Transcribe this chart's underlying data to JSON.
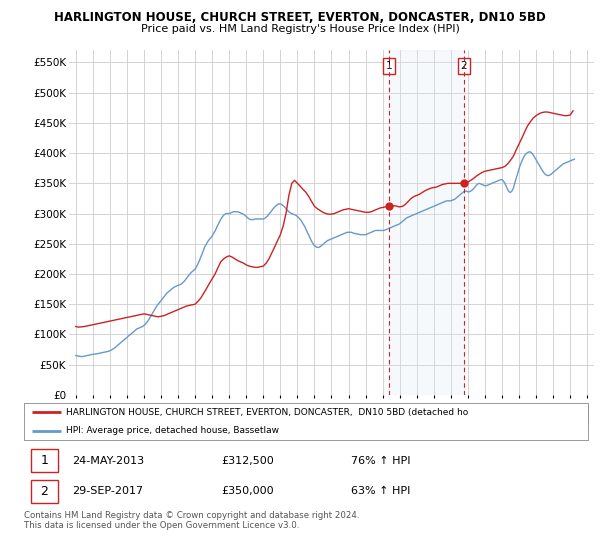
{
  "title": "HARLINGTON HOUSE, CHURCH STREET, EVERTON, DONCASTER, DN10 5BD",
  "subtitle": "Price paid vs. HM Land Registry's House Price Index (HPI)",
  "ylim": [
    0,
    570000
  ],
  "yticks": [
    0,
    50000,
    100000,
    150000,
    200000,
    250000,
    300000,
    350000,
    400000,
    450000,
    500000,
    550000
  ],
  "ytick_labels": [
    "£0",
    "£50K",
    "£100K",
    "£150K",
    "£200K",
    "£250K",
    "£300K",
    "£350K",
    "£400K",
    "£450K",
    "£500K",
    "£550K"
  ],
  "background_color": "#ffffff",
  "plot_bg_color": "#ffffff",
  "grid_color": "#cccccc",
  "hpi_line_color": "#6699cc",
  "price_line_color": "#cc2222",
  "vline_color": "#cc2222",
  "span_color": "#dce8f5",
  "legend_label_red": "HARLINGTON HOUSE, CHURCH STREET, EVERTON, DONCASTER,  DN10 5BD (detached ho",
  "legend_label_blue": "HPI: Average price, detached house, Bassetlaw",
  "annotation1_date": "24-MAY-2013",
  "annotation1_price": "£312,500",
  "annotation1_hpi": "76% ↑ HPI",
  "annotation2_date": "29-SEP-2017",
  "annotation2_price": "£350,000",
  "annotation2_hpi": "63% ↑ HPI",
  "copyright": "Contains HM Land Registry data © Crown copyright and database right 2024.\nThis data is licensed under the Open Government Licence v3.0.",
  "sale1_x": 2013.38,
  "sale1_y": 312500,
  "sale2_x": 2017.75,
  "sale2_y": 350000,
  "hpi_x": [
    1995.0,
    1995.08,
    1995.17,
    1995.25,
    1995.33,
    1995.42,
    1995.5,
    1995.58,
    1995.67,
    1995.75,
    1995.83,
    1995.92,
    1996.0,
    1996.08,
    1996.17,
    1996.25,
    1996.33,
    1996.42,
    1996.5,
    1996.58,
    1996.67,
    1996.75,
    1996.83,
    1996.92,
    1997.0,
    1997.08,
    1997.17,
    1997.25,
    1997.33,
    1997.42,
    1997.5,
    1997.58,
    1997.67,
    1997.75,
    1997.83,
    1997.92,
    1998.0,
    1998.08,
    1998.17,
    1998.25,
    1998.33,
    1998.42,
    1998.5,
    1998.58,
    1998.67,
    1998.75,
    1998.83,
    1998.92,
    1999.0,
    1999.08,
    1999.17,
    1999.25,
    1999.33,
    1999.42,
    1999.5,
    1999.58,
    1999.67,
    1999.75,
    1999.83,
    1999.92,
    2000.0,
    2000.08,
    2000.17,
    2000.25,
    2000.33,
    2000.42,
    2000.5,
    2000.58,
    2000.67,
    2000.75,
    2000.83,
    2000.92,
    2001.0,
    2001.08,
    2001.17,
    2001.25,
    2001.33,
    2001.42,
    2001.5,
    2001.58,
    2001.67,
    2001.75,
    2001.83,
    2001.92,
    2002.0,
    2002.08,
    2002.17,
    2002.25,
    2002.33,
    2002.42,
    2002.5,
    2002.58,
    2002.67,
    2002.75,
    2002.83,
    2002.92,
    2003.0,
    2003.08,
    2003.17,
    2003.25,
    2003.33,
    2003.42,
    2003.5,
    2003.58,
    2003.67,
    2003.75,
    2003.83,
    2003.92,
    2004.0,
    2004.08,
    2004.17,
    2004.25,
    2004.33,
    2004.42,
    2004.5,
    2004.58,
    2004.67,
    2004.75,
    2004.83,
    2004.92,
    2005.0,
    2005.08,
    2005.17,
    2005.25,
    2005.33,
    2005.42,
    2005.5,
    2005.58,
    2005.67,
    2005.75,
    2005.83,
    2005.92,
    2006.0,
    2006.08,
    2006.17,
    2006.25,
    2006.33,
    2006.42,
    2006.5,
    2006.58,
    2006.67,
    2006.75,
    2006.83,
    2006.92,
    2007.0,
    2007.08,
    2007.17,
    2007.25,
    2007.33,
    2007.42,
    2007.5,
    2007.58,
    2007.67,
    2007.75,
    2007.83,
    2007.92,
    2008.0,
    2008.08,
    2008.17,
    2008.25,
    2008.33,
    2008.42,
    2008.5,
    2008.58,
    2008.67,
    2008.75,
    2008.83,
    2008.92,
    2009.0,
    2009.08,
    2009.17,
    2009.25,
    2009.33,
    2009.42,
    2009.5,
    2009.58,
    2009.67,
    2009.75,
    2009.83,
    2009.92,
    2010.0,
    2010.08,
    2010.17,
    2010.25,
    2010.33,
    2010.42,
    2010.5,
    2010.58,
    2010.67,
    2010.75,
    2010.83,
    2010.92,
    2011.0,
    2011.08,
    2011.17,
    2011.25,
    2011.33,
    2011.42,
    2011.5,
    2011.58,
    2011.67,
    2011.75,
    2011.83,
    2011.92,
    2012.0,
    2012.08,
    2012.17,
    2012.25,
    2012.33,
    2012.42,
    2012.5,
    2012.58,
    2012.67,
    2012.75,
    2012.83,
    2012.92,
    2013.0,
    2013.08,
    2013.17,
    2013.25,
    2013.33,
    2013.42,
    2013.5,
    2013.58,
    2013.67,
    2013.75,
    2013.83,
    2013.92,
    2014.0,
    2014.08,
    2014.17,
    2014.25,
    2014.33,
    2014.42,
    2014.5,
    2014.58,
    2014.67,
    2014.75,
    2014.83,
    2014.92,
    2015.0,
    2015.08,
    2015.17,
    2015.25,
    2015.33,
    2015.42,
    2015.5,
    2015.58,
    2015.67,
    2015.75,
    2015.83,
    2015.92,
    2016.0,
    2016.08,
    2016.17,
    2016.25,
    2016.33,
    2016.42,
    2016.5,
    2016.58,
    2016.67,
    2016.75,
    2016.83,
    2016.92,
    2017.0,
    2017.08,
    2017.17,
    2017.25,
    2017.33,
    2017.42,
    2017.5,
    2017.58,
    2017.67,
    2017.75,
    2017.83,
    2017.92,
    2018.0,
    2018.08,
    2018.17,
    2018.25,
    2018.33,
    2018.42,
    2018.5,
    2018.58,
    2018.67,
    2018.75,
    2018.83,
    2018.92,
    2019.0,
    2019.08,
    2019.17,
    2019.25,
    2019.33,
    2019.42,
    2019.5,
    2019.58,
    2019.67,
    2019.75,
    2019.83,
    2019.92,
    2020.0,
    2020.08,
    2020.17,
    2020.25,
    2020.33,
    2020.42,
    2020.5,
    2020.58,
    2020.67,
    2020.75,
    2020.83,
    2020.92,
    2021.0,
    2021.08,
    2021.17,
    2021.25,
    2021.33,
    2021.42,
    2021.5,
    2021.58,
    2021.67,
    2021.75,
    2021.83,
    2021.92,
    2022.0,
    2022.08,
    2022.17,
    2022.25,
    2022.33,
    2022.42,
    2022.5,
    2022.58,
    2022.67,
    2022.75,
    2022.83,
    2022.92,
    2023.0,
    2023.08,
    2023.17,
    2023.25,
    2023.33,
    2023.42,
    2023.5,
    2023.58,
    2023.67,
    2023.75,
    2023.83,
    2023.92,
    2024.0,
    2024.08,
    2024.17,
    2024.25
  ],
  "hpi_y": [
    65000,
    64500,
    64000,
    63500,
    63200,
    63500,
    64000,
    64500,
    65000,
    65500,
    66000,
    66500,
    67000,
    67200,
    67500,
    68000,
    68500,
    69000,
    69500,
    70000,
    70500,
    71000,
    71500,
    72000,
    73000,
    74000,
    75500,
    77000,
    79000,
    81000,
    83000,
    85000,
    87000,
    89000,
    91000,
    93000,
    95000,
    97000,
    99000,
    101000,
    103000,
    105000,
    107000,
    109000,
    110000,
    111000,
    112000,
    113000,
    115000,
    117000,
    120000,
    123000,
    127000,
    131000,
    135000,
    139000,
    143000,
    147000,
    150000,
    153000,
    156000,
    159000,
    162000,
    165000,
    168000,
    170000,
    172000,
    174000,
    176000,
    178000,
    179000,
    180000,
    181000,
    182000,
    183000,
    185000,
    187000,
    190000,
    193000,
    196000,
    199000,
    202000,
    204000,
    206000,
    208000,
    212000,
    217000,
    222000,
    228000,
    234000,
    240000,
    246000,
    250000,
    254000,
    257000,
    260000,
    263000,
    267000,
    271000,
    276000,
    281000,
    286000,
    290000,
    294000,
    297000,
    299000,
    300000,
    300000,
    300000,
    301000,
    302000,
    303000,
    303000,
    303000,
    303000,
    302000,
    301000,
    300000,
    299000,
    297000,
    295000,
    293000,
    291000,
    290000,
    290000,
    290000,
    291000,
    291000,
    291000,
    291000,
    291000,
    291000,
    291000,
    292000,
    294000,
    296000,
    299000,
    302000,
    305000,
    308000,
    311000,
    313000,
    315000,
    316000,
    316000,
    315000,
    313000,
    311000,
    308000,
    305000,
    303000,
    301000,
    300000,
    299000,
    298000,
    297000,
    295000,
    293000,
    290000,
    287000,
    283000,
    279000,
    274000,
    269000,
    264000,
    259000,
    254000,
    250000,
    247000,
    245000,
    244000,
    244000,
    245000,
    247000,
    249000,
    251000,
    253000,
    255000,
    256000,
    257000,
    258000,
    259000,
    260000,
    261000,
    262000,
    263000,
    264000,
    265000,
    266000,
    267000,
    268000,
    269000,
    269000,
    269000,
    269000,
    268000,
    267000,
    267000,
    266000,
    266000,
    265000,
    265000,
    265000,
    265000,
    265000,
    266000,
    267000,
    268000,
    269000,
    270000,
    271000,
    272000,
    272000,
    272000,
    272000,
    272000,
    272000,
    272000,
    273000,
    274000,
    275000,
    276000,
    277000,
    278000,
    279000,
    280000,
    281000,
    282000,
    283000,
    285000,
    287000,
    289000,
    291000,
    293000,
    294000,
    295000,
    296000,
    297000,
    298000,
    299000,
    300000,
    301000,
    302000,
    303000,
    304000,
    305000,
    306000,
    307000,
    308000,
    309000,
    310000,
    311000,
    312000,
    313000,
    314000,
    315000,
    316000,
    317000,
    318000,
    319000,
    320000,
    321000,
    321000,
    321000,
    321000,
    322000,
    323000,
    324000,
    326000,
    328000,
    330000,
    332000,
    334000,
    336000,
    337000,
    337000,
    336000,
    336000,
    337000,
    339000,
    341000,
    344000,
    347000,
    349000,
    350000,
    349000,
    348000,
    347000,
    346000,
    346000,
    347000,
    348000,
    349000,
    350000,
    351000,
    352000,
    353000,
    354000,
    355000,
    356000,
    356000,
    354000,
    350000,
    345000,
    340000,
    336000,
    335000,
    337000,
    342000,
    350000,
    358000,
    366000,
    374000,
    381000,
    387000,
    392000,
    396000,
    399000,
    401000,
    402000,
    402000,
    400000,
    397000,
    393000,
    389000,
    385000,
    381000,
    377000,
    373000,
    369000,
    366000,
    364000,
    363000,
    363000,
    364000,
    366000,
    368000,
    370000,
    372000,
    374000,
    376000,
    378000,
    380000,
    382000,
    383000,
    384000,
    385000,
    386000,
    387000,
    388000,
    389000,
    390000
  ],
  "price_x": [
    1995.0,
    1995.17,
    1995.33,
    1995.5,
    1995.67,
    1995.83,
    1996.0,
    1996.17,
    1996.33,
    1996.5,
    1996.67,
    1996.83,
    1997.0,
    1997.17,
    1997.33,
    1997.5,
    1997.67,
    1997.83,
    1998.0,
    1998.17,
    1998.33,
    1998.5,
    1998.67,
    1998.83,
    1999.0,
    1999.17,
    1999.33,
    1999.5,
    1999.67,
    1999.83,
    2000.0,
    2000.17,
    2000.33,
    2000.5,
    2000.67,
    2000.83,
    2001.0,
    2001.17,
    2001.33,
    2001.5,
    2001.67,
    2001.83,
    2002.0,
    2002.17,
    2002.33,
    2002.5,
    2002.67,
    2002.83,
    2003.0,
    2003.17,
    2003.33,
    2003.5,
    2003.67,
    2003.83,
    2004.0,
    2004.17,
    2004.33,
    2004.5,
    2004.67,
    2004.83,
    2005.0,
    2005.17,
    2005.33,
    2005.5,
    2005.67,
    2005.83,
    2006.0,
    2006.17,
    2006.33,
    2006.5,
    2006.67,
    2006.83,
    2007.0,
    2007.17,
    2007.33,
    2007.5,
    2007.67,
    2007.83,
    2008.0,
    2008.17,
    2008.33,
    2008.5,
    2008.67,
    2008.83,
    2009.0,
    2009.17,
    2009.33,
    2009.5,
    2009.67,
    2009.83,
    2010.0,
    2010.17,
    2010.33,
    2010.5,
    2010.67,
    2010.83,
    2011.0,
    2011.17,
    2011.33,
    2011.5,
    2011.67,
    2011.83,
    2012.0,
    2012.17,
    2012.33,
    2012.5,
    2012.67,
    2012.83,
    2013.0,
    2013.17,
    2013.33,
    2013.5,
    2013.67,
    2013.83,
    2014.0,
    2014.17,
    2014.33,
    2014.5,
    2014.67,
    2014.83,
    2015.0,
    2015.17,
    2015.33,
    2015.5,
    2015.67,
    2015.83,
    2016.0,
    2016.17,
    2016.33,
    2016.5,
    2016.67,
    2016.83,
    2017.0,
    2017.17,
    2017.33,
    2017.5,
    2017.67,
    2017.83,
    2018.0,
    2018.17,
    2018.33,
    2018.5,
    2018.67,
    2018.83,
    2019.0,
    2019.17,
    2019.33,
    2019.5,
    2019.67,
    2019.83,
    2020.0,
    2020.17,
    2020.33,
    2020.5,
    2020.67,
    2020.83,
    2021.0,
    2021.17,
    2021.33,
    2021.5,
    2021.67,
    2021.83,
    2022.0,
    2022.17,
    2022.33,
    2022.5,
    2022.67,
    2022.83,
    2023.0,
    2023.17,
    2023.33,
    2023.5,
    2023.67,
    2023.83,
    2024.0,
    2024.17
  ],
  "price_y": [
    113000,
    112000,
    112500,
    113000,
    114000,
    115000,
    116000,
    117000,
    118000,
    119000,
    120000,
    121000,
    122000,
    123000,
    124000,
    125000,
    126000,
    127000,
    128000,
    129000,
    130000,
    131000,
    132000,
    133000,
    134000,
    133000,
    132000,
    131000,
    130000,
    129000,
    130000,
    131000,
    133000,
    135000,
    137000,
    139000,
    141000,
    143000,
    145000,
    147000,
    148000,
    149000,
    150000,
    155000,
    160000,
    168000,
    176000,
    184000,
    192000,
    200000,
    210000,
    220000,
    225000,
    228000,
    230000,
    228000,
    225000,
    222000,
    220000,
    218000,
    215000,
    213000,
    212000,
    211000,
    211000,
    212000,
    213000,
    218000,
    225000,
    235000,
    245000,
    255000,
    265000,
    280000,
    300000,
    330000,
    350000,
    355000,
    350000,
    345000,
    340000,
    335000,
    328000,
    320000,
    312000,
    308000,
    305000,
    302000,
    300000,
    299000,
    299000,
    300000,
    302000,
    304000,
    306000,
    307000,
    308000,
    307000,
    306000,
    305000,
    304000,
    303000,
    302000,
    302000,
    303000,
    305000,
    307000,
    309000,
    310000,
    311000,
    312000,
    312500,
    313000,
    312000,
    311000,
    312000,
    315000,
    320000,
    325000,
    328000,
    330000,
    332000,
    335000,
    338000,
    340000,
    342000,
    343000,
    344000,
    346000,
    348000,
    349000,
    350000,
    350000,
    350000,
    350000,
    350000,
    350000,
    351000,
    352000,
    355000,
    358000,
    362000,
    365000,
    368000,
    370000,
    371000,
    372000,
    373000,
    374000,
    375000,
    376000,
    378000,
    382000,
    388000,
    395000,
    405000,
    415000,
    425000,
    435000,
    445000,
    452000,
    458000,
    462000,
    465000,
    467000,
    468000,
    468000,
    467000,
    466000,
    465000,
    464000,
    463000,
    462000,
    462000,
    463000,
    470000
  ],
  "xticks": [
    1995,
    1996,
    1997,
    1998,
    1999,
    2000,
    2001,
    2002,
    2003,
    2004,
    2005,
    2006,
    2007,
    2008,
    2009,
    2010,
    2011,
    2012,
    2013,
    2014,
    2015,
    2016,
    2017,
    2018,
    2019,
    2020,
    2021,
    2022,
    2023,
    2024,
    2025
  ]
}
